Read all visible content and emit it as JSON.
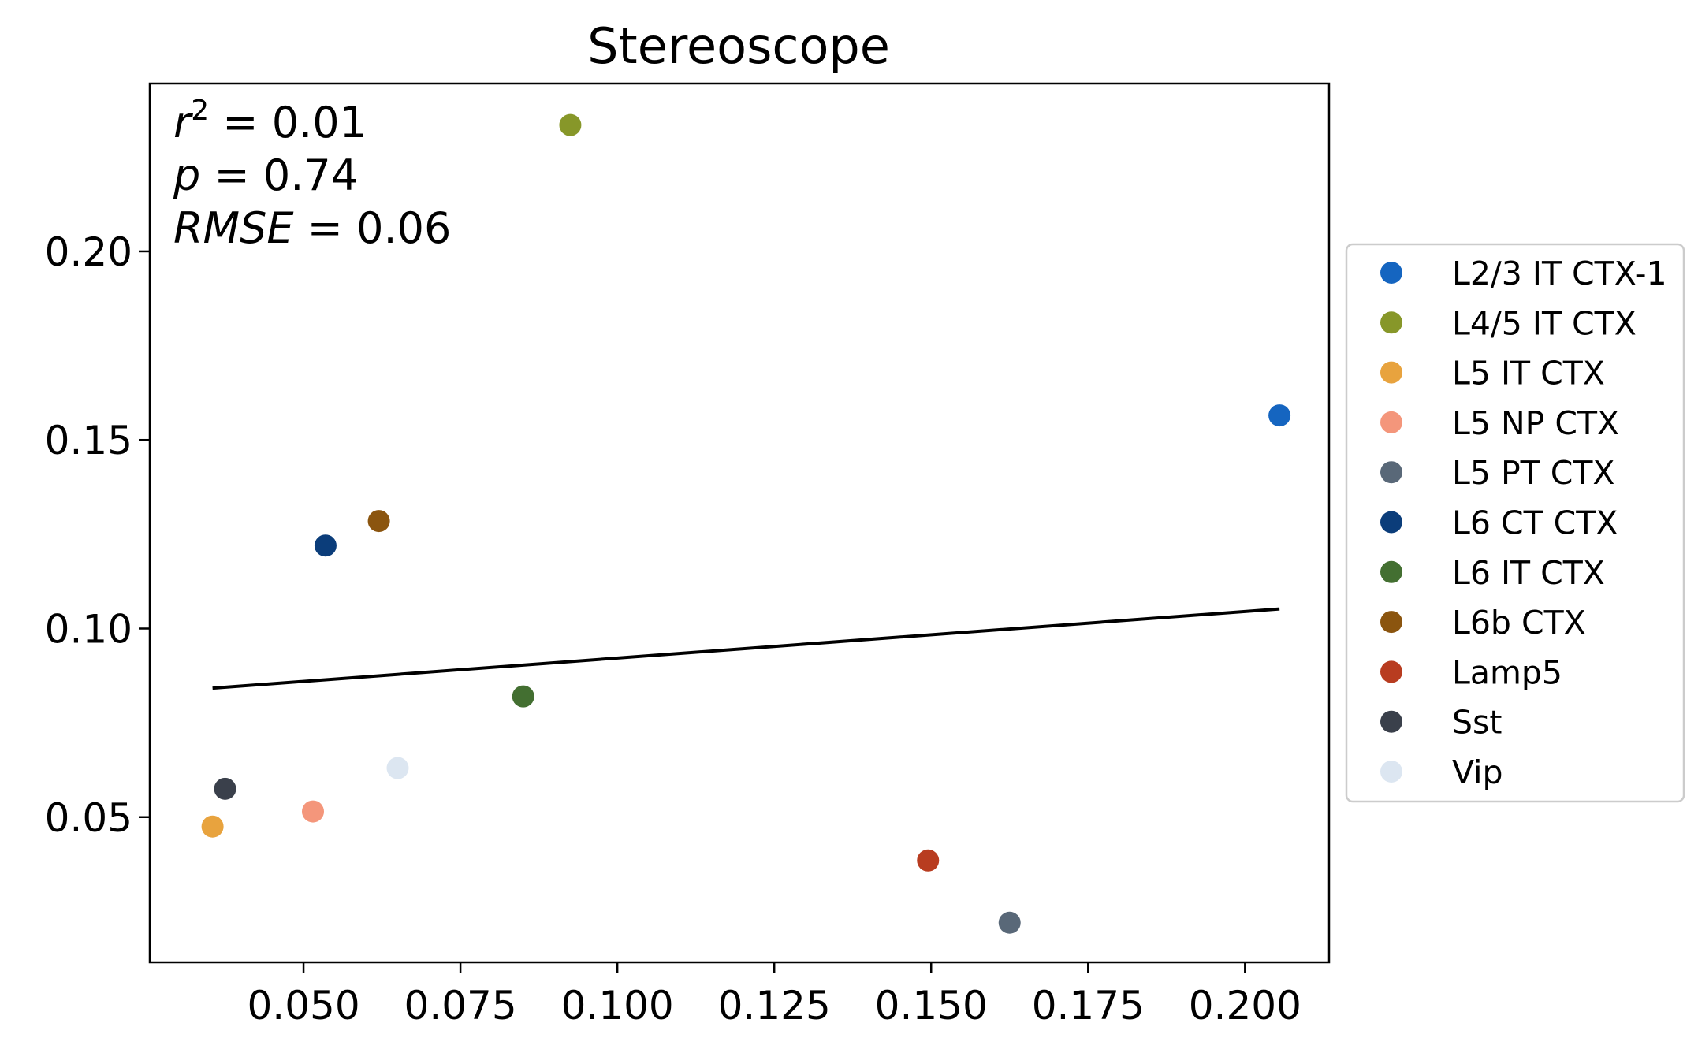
{
  "chart_data": {
    "type": "scatter",
    "title": "Stereoscope",
    "xlabel": "",
    "ylabel": "",
    "xlim": [
      0.0255,
      0.2134
    ],
    "ylim": [
      0.0115,
      0.2445
    ],
    "xticks": [
      0.05,
      0.075,
      0.1,
      0.125,
      0.15,
      0.175,
      0.2
    ],
    "xtick_labels": [
      "0.050",
      "0.075",
      "0.100",
      "0.125",
      "0.150",
      "0.175",
      "0.200"
    ],
    "yticks": [
      0.05,
      0.1,
      0.15,
      0.2
    ],
    "ytick_labels": [
      "0.05",
      "0.10",
      "0.15",
      "0.20"
    ],
    "grid": false,
    "legend_position": "right, outside plot",
    "stats": {
      "r2_value": "0.01",
      "p_value": "0.74",
      "rmse_value": "0.06"
    },
    "series": [
      {
        "name": "L2/3 IT CTX-1",
        "color": "#1565c0",
        "x": 0.2055,
        "y": 0.1565
      },
      {
        "name": "L4/5 IT CTX",
        "color": "#879729",
        "x": 0.0925,
        "y": 0.2335
      },
      {
        "name": "L5 IT CTX",
        "color": "#e8a33e",
        "x": 0.0355,
        "y": 0.0475
      },
      {
        "name": "L5 NP CTX",
        "color": "#f4967b",
        "x": 0.0515,
        "y": 0.0515
      },
      {
        "name": "L5 PT CTX",
        "color": "#596878",
        "x": 0.1625,
        "y": 0.022
      },
      {
        "name": "L6 CT CTX",
        "color": "#0b3d7a",
        "x": 0.0535,
        "y": 0.122
      },
      {
        "name": "L6 IT CTX",
        "color": "#436f31",
        "x": 0.085,
        "y": 0.082
      },
      {
        "name": "L6b CTX",
        "color": "#8b550f",
        "x": 0.062,
        "y": 0.1285
      },
      {
        "name": "Lamp5",
        "color": "#b83c20",
        "x": 0.1495,
        "y": 0.0385
      },
      {
        "name": "Sst",
        "color": "#3a404b",
        "x": 0.0375,
        "y": 0.0575
      },
      {
        "name": "Vip",
        "color": "#dce6f1",
        "x": 0.065,
        "y": 0.063
      }
    ],
    "regression_line": {
      "color": "#000000",
      "x": [
        0.0355,
        0.2055
      ],
      "y": [
        0.0842,
        0.1052
      ]
    }
  }
}
